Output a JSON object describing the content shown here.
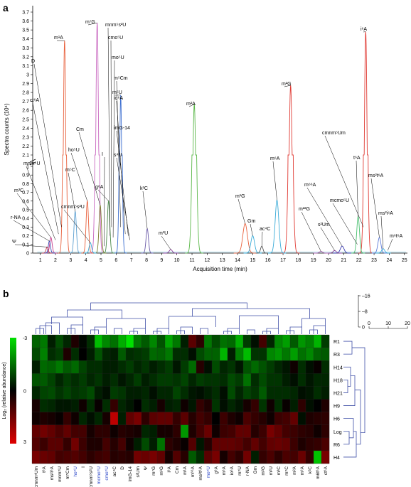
{
  "panel_a": {
    "label": "a"
  },
  "panel_b": {
    "label": "b"
  },
  "chart_data": [
    {
      "type": "line",
      "panel": "a",
      "xlabel": "Acquisition time (min)",
      "ylabel": "Spectra counts (10⁴)",
      "xlim": [
        0.5,
        25.2
      ],
      "x_ticks": [
        "1",
        "2",
        "3",
        "4",
        "5",
        "6",
        "7",
        "8",
        "9",
        "10",
        "11",
        "12",
        "13",
        "14",
        "15",
        "16",
        "17",
        "18",
        "19",
        "20",
        "21",
        "22",
        "23",
        "24",
        "25"
      ],
      "y_ticks_lower": [
        "0",
        "0.1",
        "0.2",
        "0.3",
        "0.4",
        "0.5",
        "0.6",
        "0.7",
        "0.8",
        "0.9",
        "1"
      ],
      "y_ticks_upper": [
        "2.1",
        "2.2",
        "2.3",
        "2.4",
        "2.5",
        "2.6",
        "2.7",
        "2.8",
        "2.9",
        "3",
        "3.1",
        "3.2",
        "3.3",
        "3.4",
        "3.5",
        "3.6",
        "3.7"
      ],
      "y_axis_break": [
        1,
        2.1
      ],
      "grid": false,
      "series": [
        {
          "name": "m¹A",
          "color": "#e8603c",
          "rt": 2.6,
          "peak": 3.38,
          "w": 0.09
        },
        {
          "name": "m⁷G",
          "color": "#c968c0",
          "rt": 4.75,
          "peak": 3.58,
          "w": 0.1
        },
        {
          "name": "m²G",
          "color": "#e03a33",
          "rt": 17.5,
          "peak": 2.88,
          "w": 0.12
        },
        {
          "name": "i⁶A",
          "color": "#e03a33",
          "rt": 22.45,
          "peak": 3.48,
          "w": 0.1
        },
        {
          "name": "m²A",
          "color": "#5cb84a",
          "rt": 11.15,
          "peak": 2.67,
          "w": 0.12
        },
        {
          "name": "m⁵U",
          "color": "#3d6fd0",
          "rt": 6.3,
          "peak": 2.77,
          "w": 0.08
        },
        {
          "name": "m⁶A",
          "color": "#3aabd8",
          "rt": 16.6,
          "peak": 0.61,
          "w": 0.12
        },
        {
          "name": "m¹G",
          "color": "#e8603c",
          "rt": 14.5,
          "peak": 0.34,
          "w": 0.15
        },
        {
          "name": "Gm",
          "color": "#3aabd8",
          "rt": 15.0,
          "peak": 0.2,
          "w": 0.12
        },
        {
          "name": "ac⁴C",
          "color": "#555555",
          "rt": 15.6,
          "peak": 0.08,
          "w": 0.08
        },
        {
          "name": "k²C",
          "color": "#6a5aa8",
          "rt": 8.05,
          "peak": 0.28,
          "w": 0.08
        },
        {
          "name": "m³U",
          "color": "#8a3a9a",
          "rt": 9.6,
          "peak": 0.04,
          "w": 0.1
        },
        {
          "name": "g⁶A",
          "color": "#4a8a4a",
          "rt": 5.5,
          "peak": 0.6,
          "w": 0.08
        },
        {
          "name": "Cm",
          "color": "#7a7a2a",
          "rt": 4.95,
          "peak": 0.55,
          "w": 0.08
        },
        {
          "name": "ho⁵U",
          "color": "#e8603c",
          "rt": 4.1,
          "peak": 0.6,
          "w": 0.08
        },
        {
          "name": "m⁵C",
          "color": "#5c9fd0",
          "rt": 3.3,
          "peak": 0.48,
          "w": 0.08
        },
        {
          "name": "m³C",
          "color": "#c93a8a",
          "rt": 1.7,
          "peak": 0.18,
          "w": 0.08
        },
        {
          "name": "r-NA",
          "color": "#3a4ab0",
          "rt": 1.6,
          "peak": 0.14,
          "w": 0.07
        },
        {
          "name": "Ψ",
          "color": "#c0344a",
          "rt": 1.45,
          "peak": 0.07,
          "w": 0.07
        },
        {
          "name": "cmnm⁵s²U",
          "color": "#3aabd8",
          "rt": 4.3,
          "peak": 0.12,
          "w": 0.08
        },
        {
          "name": "t⁶A",
          "color": "#4ac070",
          "rt": 21.95,
          "peak": 0.42,
          "w": 0.09
        },
        {
          "name": "ms²t⁶A",
          "color": "#5a7ad8",
          "rt": 23.35,
          "peak": 0.18,
          "w": 0.1
        },
        {
          "name": "m⁶⁶A",
          "color": "#3a3ab0",
          "rt": 20.9,
          "peak": 0.08,
          "w": 0.12
        },
        {
          "name": "ms²i⁶A",
          "color": "#3aabd8",
          "rt": 23.6,
          "peak": 0.05,
          "w": 0.1
        },
        {
          "name": "s²Um",
          "color": "#8a3a9a",
          "rt": 20.4,
          "peak": 0.03,
          "w": 0.1
        },
        {
          "name": "m²²G",
          "color": "#b060b0",
          "rt": 19.5,
          "peak": 0.02,
          "w": 0.1
        }
      ],
      "annotations": [
        "m¹A",
        "m⁷G",
        "mnm⁵s²U",
        "cmo⁵U",
        "mo⁵U",
        "m⁵Cm",
        "io⁶A",
        "imG-14",
        "s⁴U",
        "m²G",
        "i⁶A",
        "m²A",
        "m⁵U",
        "D",
        "ct⁶A",
        "Cm",
        "ho⁵U",
        "I",
        "g⁶A",
        "m⁵C",
        "mnm⁵U",
        "m³C",
        "r-NA",
        "Ψ",
        "cmnm⁵s²U",
        "k²C",
        "m³U",
        "m¹G",
        "Gm",
        "ac⁴C",
        "m⁶A",
        "m⁶⁶A",
        "m²²G",
        "s²Um",
        "mcmo⁵U",
        "t⁶A",
        "cmnm⁵Um",
        "ms²t⁶A",
        "ms²i⁶A",
        "m⁶t⁶A"
      ]
    },
    {
      "type": "heatmap",
      "panel": "b",
      "columns": [
        "cmnm⁵Um",
        "t⁶A",
        "ms²i⁶A",
        "mnm⁵U",
        "m⁵Cm",
        "ho⁵U",
        "I",
        "cmnm⁵s²U",
        "mcmo⁵U",
        "cmo⁵U",
        "ac⁴C",
        "D",
        "imG-14",
        "s²Um",
        "Ψ",
        "m⁷G",
        "m¹G",
        "i⁶A",
        "Cm",
        "m¹A",
        "m⁶⁶A",
        "ms²t⁶A",
        "mo⁵U",
        "g⁶A",
        "m⁶A",
        "io⁶A",
        "m⁵U",
        "r-NA",
        "Gm",
        "m²G",
        "m²U",
        "m³C",
        "m⁵C",
        "m²A",
        "m⁶A",
        "k²C",
        "m6t⁶A",
        "ct⁶A"
      ],
      "highlighted_columns": [
        "ho⁵U",
        "mcmo⁵U",
        "cmo⁵U",
        "mo⁵U"
      ],
      "rows": [
        "R1",
        "R3",
        "H14",
        "H18",
        "H21",
        "H9",
        "H6",
        "Log",
        "R6",
        "H4"
      ],
      "colorbar": {
        "label": "Log₂ (relative abundance)",
        "ticks": [
          "-3",
          "0",
          "3"
        ],
        "min": -3,
        "max": 3,
        "low_color": "#00e000",
        "mid_color": "#000000",
        "high_color": "#e00000"
      },
      "dendrogram_scale": {
        "ticks": [
          "0",
          "10",
          "20"
        ]
      },
      "column_dendrogram_scale": {
        "ticks": [
          "16",
          "8",
          "0"
        ]
      },
      "values": [
        [
          -1.3,
          -1.6,
          -0.4,
          -1.0,
          -0.5,
          0.4,
          -0.1,
          -0.6,
          -2.5,
          -1.8,
          -1.5,
          -2.3,
          -3.0,
          -1.6,
          -1.2,
          -1.8,
          -1.1,
          -2.2,
          -1.6,
          -0.4,
          1.2,
          0.6,
          -1.6,
          -1.0,
          -1.5,
          -1.4,
          -2.3,
          -0.8,
          -0.2,
          0.9,
          -0.5,
          -1.8,
          -2.1,
          -1.2,
          -2.0,
          -1.7,
          -2.4,
          -0.8
        ],
        [
          -1.0,
          -1.7,
          -0.6,
          -0.8,
          0.4,
          -0.6,
          0.0,
          -0.4,
          -1.1,
          -0.5,
          -0.4,
          -1.2,
          -0.6,
          -0.7,
          -0.8,
          -1.4,
          -1.3,
          -1.6,
          -0.6,
          -0.6,
          -0.2,
          -1.0,
          -1.3,
          -1.3,
          -2.4,
          -0.4,
          -1.7,
          -2.5,
          -0.7,
          -0.7,
          -1.8,
          -2.0,
          -1.6,
          -2.1,
          -1.5,
          -1.8,
          -1.3,
          -1.2
        ],
        [
          -0.4,
          -1.4,
          -1.3,
          -1.6,
          -1.2,
          -1.4,
          -0.9,
          -0.6,
          -0.6,
          -0.4,
          -0.4,
          -0.6,
          -0.8,
          -0.5,
          -0.7,
          -0.4,
          -0.6,
          -0.8,
          -0.3,
          -0.8,
          -1.4,
          0.5,
          -0.2,
          -1.0,
          -0.5,
          -0.7,
          -0.3,
          -1.1,
          -1.4,
          -1.1,
          -0.8,
          -0.5,
          -0.3,
          0.2,
          -0.6,
          -0.2,
          0.1,
          -0.6
        ],
        [
          -1.1,
          -1.2,
          -0.9,
          -0.5,
          -0.8,
          -0.6,
          -0.8,
          -0.5,
          -0.7,
          -0.4,
          -0.6,
          -0.3,
          -0.5,
          -0.8,
          -0.4,
          -0.6,
          -0.8,
          -0.8,
          -0.7,
          -0.9,
          -0.5,
          -0.8,
          -0.7,
          -0.7,
          -0.6,
          -1.0,
          -0.8,
          -1.5,
          -0.6,
          -1.0,
          -0.7,
          -0.7,
          -0.4,
          -0.2,
          -0.6,
          -0.3,
          -0.5,
          -0.5
        ],
        [
          -0.5,
          -0.9,
          -1.0,
          -0.7,
          -0.9,
          -0.7,
          -0.8,
          -1.0,
          -0.4,
          -0.2,
          -0.8,
          -0.7,
          -0.4,
          -0.4,
          -0.5,
          -0.2,
          -0.5,
          -0.5,
          -0.9,
          -0.6,
          -0.3,
          -0.2,
          -0.4,
          -0.6,
          -0.2,
          -1.0,
          -0.5,
          -0.9,
          -0.7,
          -1.2,
          -0.6,
          -0.6,
          -0.6,
          -0.5,
          -0.2,
          -0.3,
          -0.6,
          -0.4
        ],
        [
          0.3,
          -0.6,
          -0.5,
          -0.3,
          -0.3,
          -0.4,
          0.2,
          -0.6,
          0.1,
          -0.6,
          0.7,
          -0.5,
          -0.3,
          0.0,
          -0.6,
          -0.4,
          0.3,
          -0.4,
          -0.5,
          0.2,
          -0.3,
          0.7,
          0.4,
          -0.7,
          -0.2,
          -0.5,
          -0.3,
          0.3,
          0.7,
          -0.7,
          0.2,
          -0.6,
          0.1,
          -0.4,
          0.6,
          -0.2,
          0.0,
          0.4
        ],
        [
          0.2,
          0.4,
          0.3,
          0.1,
          0.7,
          0.2,
          -0.5,
          -0.2,
          -0.5,
          0.3,
          2.5,
          -0.4,
          1.3,
          1.6,
          0.6,
          1.2,
          1.3,
          1.3,
          0.7,
          1.2,
          0.5,
          0.9,
          0.7,
          0.0,
          0.8,
          0.4,
          0.2,
          1.0,
          0.7,
          0.5,
          0.2,
          0.8,
          0.9,
          1.3,
          -0.2,
          0.4,
          0.5,
          0.6
        ],
        [
          1.3,
          1.5,
          1.3,
          1.0,
          1.3,
          0.9,
          0.9,
          0.3,
          0.6,
          0.6,
          0.2,
          0.5,
          0.4,
          0.3,
          -0.5,
          -0.4,
          0.3,
          0.3,
          0.6,
          -2.0,
          0.4,
          0.9,
          1.4,
          0.2,
          0.8,
          0.9,
          1.3,
          1.3,
          0.5,
          0.8,
          1.6,
          1.3,
          0.9,
          0.8,
          0.6,
          0.5,
          0.2,
          0.6
        ],
        [
          1.1,
          0.8,
          1.2,
          1.2,
          0.7,
          1.5,
          0.8,
          0.4,
          0.4,
          0.9,
          0.5,
          0.9,
          0.2,
          -0.4,
          -1.0,
          -0.4,
          -1.5,
          0.6,
          0.4,
          0.1,
          1.1,
          -0.3,
          0.5,
          1.3,
          1.3,
          1.3,
          1.2,
          0.9,
          1.3,
          0.9,
          1.3,
          1.4,
          1.3,
          0.8,
          0.4,
          0.6,
          0.7,
          1.0
        ],
        [
          1.6,
          1.4,
          1.3,
          0.9,
          1.0,
          1.1,
          0.9,
          0.6,
          0.8,
          0.9,
          0.5,
          0.6,
          0.5,
          1.5,
          1.4,
          1.6,
          1.3,
          0.3,
          1.1,
          0.5,
          -1.2,
          -0.6,
          1.2,
          1.6,
          0.3,
          0.9,
          0.6,
          1.5,
          -0.4,
          0.7,
          1.0,
          0.6,
          1.0,
          0.9,
          1.4,
          0.7,
          -2.6,
          1.6
        ]
      ]
    }
  ]
}
